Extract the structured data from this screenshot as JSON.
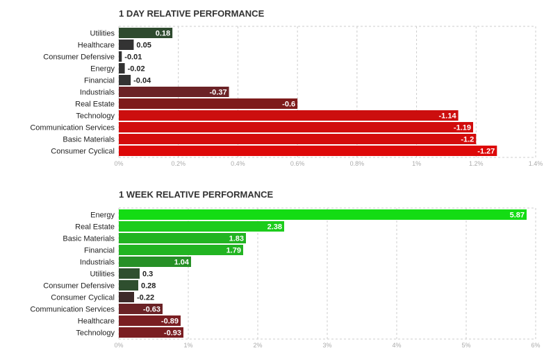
{
  "chart_data": [
    {
      "type": "bar",
      "orientation": "horizontal",
      "title": "1 DAY RELATIVE PERFORMANCE",
      "categories": [
        "Utilities",
        "Healthcare",
        "Consumer Defensive",
        "Energy",
        "Financial",
        "Industrials",
        "Real Estate",
        "Technology",
        "Communication Services",
        "Basic Materials",
        "Consumer Cyclical"
      ],
      "values": [
        0.18,
        0.05,
        -0.01,
        -0.02,
        -0.04,
        -0.37,
        -0.6,
        -1.14,
        -1.19,
        -1.2,
        -1.27
      ],
      "value_labels": [
        "0.18",
        "0.05",
        "-0.01",
        "-0.02",
        "-0.04",
        "-0.37",
        "-0.6",
        "-1.14",
        "-1.19",
        "-1.2",
        "-1.27"
      ],
      "bar_colors": [
        "#2e4a2e",
        "#333333",
        "#333333",
        "#333333",
        "#333333",
        "#6b2226",
        "#7e1b1b",
        "#cc0e0e",
        "#d10c0c",
        "#d40c0c",
        "#dd0808"
      ],
      "x_ticks": [
        "0%",
        "0.2%",
        "0.4%",
        "0.6%",
        "0.8%",
        "1%",
        "1.2%",
        "1.4%"
      ],
      "xlim": [
        0,
        1.4
      ],
      "grid": true
    },
    {
      "type": "bar",
      "orientation": "horizontal",
      "title": "1 WEEK RELATIVE PERFORMANCE",
      "categories": [
        "Energy",
        "Real Estate",
        "Basic Materials",
        "Financial",
        "Industrials",
        "Utilities",
        "Consumer Defensive",
        "Consumer Cyclical",
        "Communication Services",
        "Healthcare",
        "Technology"
      ],
      "values": [
        5.87,
        2.38,
        1.83,
        1.79,
        1.04,
        0.3,
        0.28,
        -0.22,
        -0.63,
        -0.89,
        -0.93
      ],
      "value_labels": [
        "5.87",
        "2.38",
        "1.83",
        "1.79",
        "1.04",
        "0.3",
        "0.28",
        "-0.22",
        "-0.63",
        "-0.89",
        "-0.93"
      ],
      "bar_colors": [
        "#14dc14",
        "#1ccc1c",
        "#22b422",
        "#22b422",
        "#279027",
        "#2f4f2f",
        "#2f4f2f",
        "#3d2a2a",
        "#6b2226",
        "#7a1e22",
        "#7a1e22"
      ],
      "x_ticks": [
        "0%",
        "1%",
        "2%",
        "3%",
        "4%",
        "5%",
        "6%"
      ],
      "xlim": [
        0,
        6
      ],
      "grid": true
    }
  ]
}
